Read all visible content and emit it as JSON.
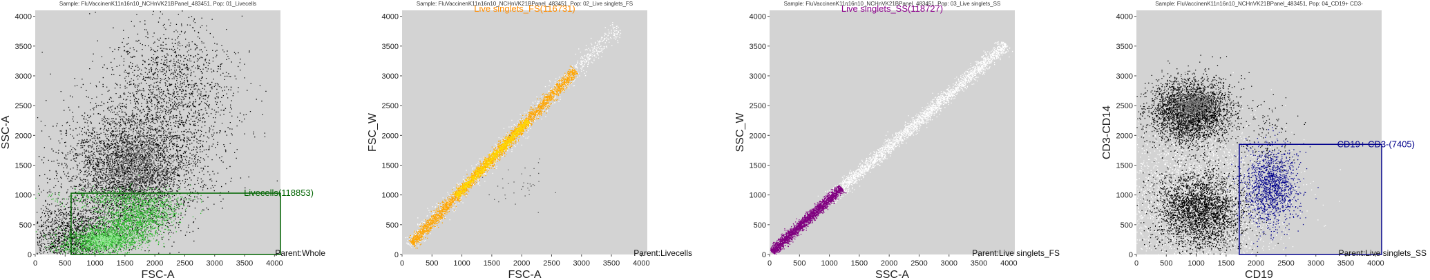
{
  "chart_data": [
    {
      "type": "scatter",
      "title": "Sample: FluVaccinenK11n16n10_NCHnVK21BPanel_483451, Pop: 01_Livecells",
      "xlabel": "FSC-A",
      "ylabel": "SSC-A",
      "xlim": [
        0,
        4100
      ],
      "ylim": [
        0,
        4100
      ],
      "xticks": [
        0,
        500,
        1000,
        1500,
        2000,
        2500,
        3000,
        3500,
        4000
      ],
      "yticks": [
        0,
        500,
        1000,
        1500,
        2000,
        2500,
        3000,
        3500,
        4000
      ],
      "grid": false,
      "background": "#d3d3d3",
      "gate": {
        "label": "Livecells(118853)",
        "x": [
          600,
          4100
        ],
        "y": [
          0,
          1030
        ],
        "color": "#006400"
      },
      "parent_label": "Parent:Whole",
      "populations": [
        {
          "color": "#000000",
          "center": [
            1600,
            1450
          ],
          "spread": [
            550,
            550
          ],
          "rotation": 45,
          "count": 4200
        },
        {
          "color": "#777777",
          "center": [
            1650,
            1500
          ],
          "spread": [
            300,
            260
          ],
          "rotation": 45,
          "count": 900
        },
        {
          "color": "#000000",
          "center": [
            2300,
            2800
          ],
          "spread": [
            520,
            600
          ],
          "rotation": 30,
          "count": 1400
        },
        {
          "color": "#000000",
          "center": [
            600,
            300
          ],
          "spread": [
            400,
            260
          ],
          "rotation": 10,
          "count": 1600
        },
        {
          "color": "#2db82d",
          "center": [
            1100,
            250
          ],
          "spread": [
            380,
            120
          ],
          "rotation": 5,
          "count": 1500
        },
        {
          "color": "#2db82d",
          "center": [
            1700,
            650
          ],
          "spread": [
            350,
            180
          ],
          "rotation": 10,
          "count": 1300
        },
        {
          "color": "#2db82d",
          "center": [
            1400,
            950
          ],
          "spread": [
            500,
            80
          ],
          "rotation": 0,
          "count": 350
        },
        {
          "color": "#90ee90",
          "center": [
            1150,
            250
          ],
          "spread": [
            180,
            70
          ],
          "rotation": 0,
          "count": 400
        }
      ]
    },
    {
      "type": "scatter",
      "title": "Sample: FluVaccinenK11n16n10_NCHnVK21BPanel_483451, Pop: 02_Live singlets_FS",
      "xlabel": "FSC-A",
      "ylabel": "FSC_W",
      "xlim": [
        0,
        4100
      ],
      "ylim": [
        0,
        4100
      ],
      "xticks": [
        0,
        500,
        1000,
        1500,
        2000,
        2500,
        3000,
        3500,
        4000
      ],
      "yticks": [
        0,
        500,
        1000,
        1500,
        2000,
        2500,
        3000,
        3500,
        4000
      ],
      "grid": false,
      "background": "#d3d3d3",
      "gate": {
        "label": "Live singlets_FS(116731)",
        "color": "#ff8c00"
      },
      "parent_label": "Parent:Livecells",
      "populations": [
        {
          "color": "#ffffff",
          "line": {
            "x0": 100,
            "x1": 3600,
            "slope": 1.05,
            "offset": 50
          },
          "noise": 70,
          "count": 1300
        },
        {
          "color": "#ffa500",
          "line": {
            "x0": 150,
            "x1": 2900,
            "slope": 1.06,
            "offset": 30
          },
          "noise": 45,
          "count": 3000
        },
        {
          "color": "#ffd700",
          "line": {
            "x0": 900,
            "x1": 2100,
            "slope": 1.06,
            "offset": 30
          },
          "noise": 30,
          "count": 1000
        },
        {
          "color": "#555555",
          "cloud": {
            "center": [
              2000,
              1200
            ],
            "spread": [
              250,
              250
            ]
          },
          "count": 40
        }
      ]
    },
    {
      "type": "scatter",
      "title": "Sample: FluVaccinenK11n16n10_NCHnVK21BPanel_483451, Pop: 03_Live singlets_SS",
      "xlabel": "SSC-A",
      "ylabel": "SSC_W",
      "xlim": [
        0,
        4100
      ],
      "ylim": [
        0,
        4100
      ],
      "xticks": [
        0,
        500,
        1000,
        1500,
        2000,
        2500,
        3000,
        3500,
        4000
      ],
      "yticks": [
        0,
        500,
        1000,
        1500,
        2000,
        2500,
        3000,
        3500,
        4000
      ],
      "grid": false,
      "background": "#d3d3d3",
      "gate": {
        "label": "Live singlets_SS(118727)",
        "color": "#8b008b"
      },
      "parent_label": "Parent:Live singlets_FS",
      "populations": [
        {
          "color": "#ffffff",
          "line": {
            "x0": 900,
            "x1": 3950,
            "slope": 0.88,
            "offset": 60
          },
          "noise": 55,
          "count": 2600
        },
        {
          "color": "#800080",
          "line": {
            "x0": 30,
            "x1": 1200,
            "slope": 0.92,
            "offset": 20
          },
          "noise": 40,
          "count": 2200
        }
      ]
    },
    {
      "type": "scatter",
      "title": "Sample: FluVaccinenK11n16n10_NCHnVK21BPanel_483451, Pop: 04_CD19+ CD3-",
      "xlabel": "CD19",
      "ylabel": "CD3-CD14",
      "xlim": [
        0,
        4100
      ],
      "ylim": [
        0,
        4100
      ],
      "xticks": [
        0,
        500,
        1000,
        1500,
        2000,
        2500,
        3000,
        3500,
        4000
      ],
      "yticks": [
        0,
        500,
        1000,
        1500,
        2000,
        2500,
        3000,
        3500,
        4000
      ],
      "grid": false,
      "background": "#d3d3d3",
      "gate": {
        "label": "CD19+ CD3-(7405)",
        "x": [
          1720,
          4100
        ],
        "y": [
          0,
          1850
        ],
        "color": "#00008b"
      },
      "parent_label": "Parent:Live singlets_SS",
      "populations": [
        {
          "color": "#ffffff",
          "cloud": {
            "center": [
              1000,
              900
            ],
            "spread": [
              700,
              650
            ]
          },
          "count": 3500
        },
        {
          "color": "#000000",
          "cloud": {
            "center": [
              900,
              2400
            ],
            "spread": [
              350,
              280
            ]
          },
          "count": 3200
        },
        {
          "color": "#777777",
          "cloud": {
            "center": [
              950,
              2500
            ],
            "spread": [
              180,
              140
            ]
          },
          "count": 700
        },
        {
          "color": "#000000",
          "cloud": {
            "center": [
              1050,
              750
            ],
            "spread": [
              380,
              330
            ]
          },
          "count": 3000
        },
        {
          "color": "#00008b",
          "cloud": {
            "center": [
              2250,
              1150
            ],
            "spread": [
              220,
              330
            ]
          },
          "count": 1400
        },
        {
          "color": "#000000",
          "cloud": {
            "center": [
              2200,
              2000
            ],
            "spread": [
              250,
              300
            ]
          },
          "count": 120
        }
      ]
    }
  ]
}
